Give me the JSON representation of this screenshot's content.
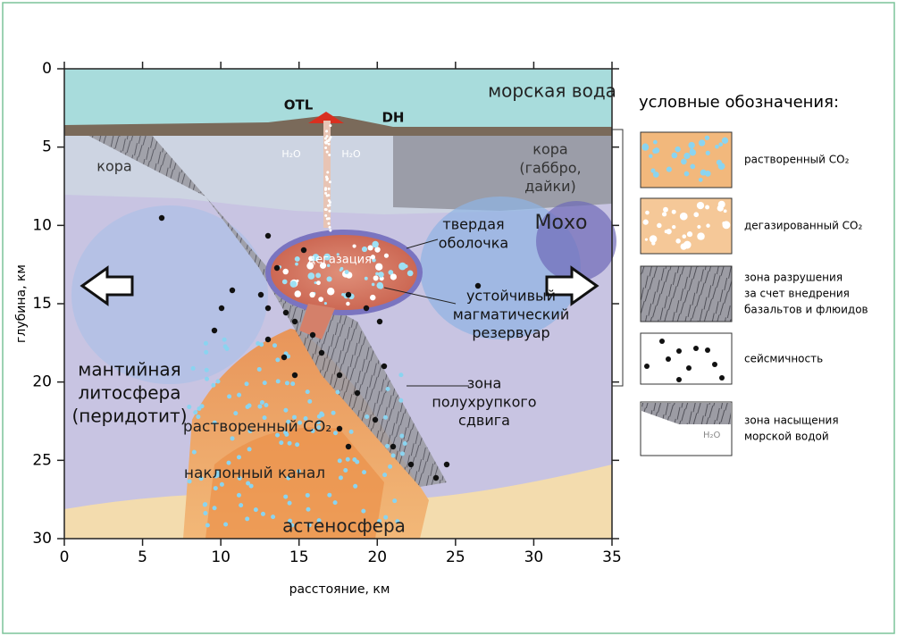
{
  "axes": {
    "x": {
      "label": "расстояние, км",
      "lim": [
        0,
        35
      ],
      "ticks": [
        0,
        5,
        10,
        15,
        20,
        25,
        30,
        35
      ]
    },
    "y": {
      "label": "глубина, км",
      "lim": [
        0,
        30
      ],
      "ticks": [
        0,
        5,
        10,
        15,
        20,
        25,
        30
      ]
    }
  },
  "labels": [
    {
      "lines": [
        "морская вода"
      ]
    },
    {
      "lines": [
        "OTL"
      ]
    },
    {
      "lines": [
        "DH"
      ]
    },
    {
      "lines": [
        "H₂O"
      ]
    },
    {
      "lines": [
        "H₂O"
      ]
    },
    {
      "lines": [
        "кора"
      ]
    },
    {
      "lines": [
        "кора",
        "(габбро,",
        "дайки)"
      ]
    },
    {
      "lines": [
        "твердая",
        "оболочка"
      ]
    },
    {
      "lines": [
        "Мохо"
      ]
    },
    {
      "lines": [
        "дегазация"
      ]
    },
    {
      "lines": [
        "устойчивый",
        "магматический",
        "резервуар"
      ]
    },
    {
      "lines": [
        "мантийная",
        "литосфера",
        "(перидотит)"
      ]
    },
    {
      "lines": [
        "растворенный CO₂"
      ]
    },
    {
      "lines": [
        "наклонный канал"
      ]
    },
    {
      "lines": [
        "зона",
        "полухрупкого",
        "сдвига"
      ]
    },
    {
      "lines": [
        "астеносфера"
      ]
    }
  ],
  "legend": {
    "title": "условные обозначения:",
    "items": [
      {
        "lines": [
          "растворенный CO₂"
        ]
      },
      {
        "lines": [
          "дегазированный CO₂"
        ]
      },
      {
        "lines": [
          "зона разрушения",
          "за счет внедрения",
          "базальтов и флюидов"
        ]
      },
      {
        "lines": [
          "сейсмичность"
        ]
      },
      {
        "lines": [
          "зона насыщения",
          "морской водой"
        ]
      }
    ],
    "swatch_text": "H₂O"
  }
}
